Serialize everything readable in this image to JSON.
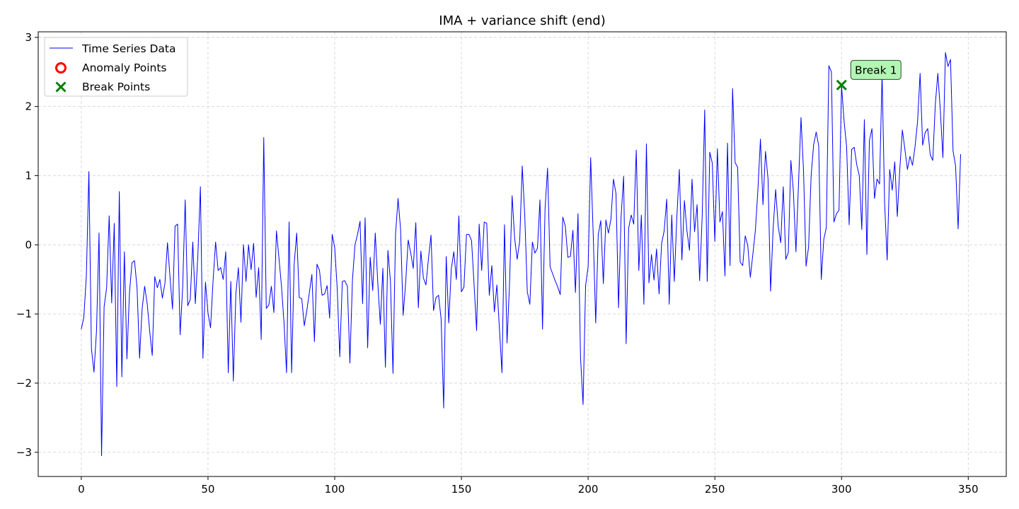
{
  "chart_data": {
    "type": "line",
    "title": "IMA + variance shift (end)",
    "xlabel": "",
    "ylabel": "",
    "xlim": [
      -17,
      365
    ],
    "ylim": [
      -3.35,
      3.08
    ],
    "xticks": [
      0,
      50,
      100,
      150,
      200,
      250,
      300,
      350
    ],
    "yticks": [
      -3,
      -2,
      -1,
      0,
      1,
      2,
      3
    ],
    "grid": true,
    "legend_position": "top-left",
    "series": [
      {
        "name": "Time Series Data",
        "color": "#0000ff",
        "x_start": 0,
        "x_step": 1,
        "y": [
          -1.22,
          -1.05,
          -0.45,
          1.06,
          -1.5,
          -1.84,
          -1.25,
          0.17,
          -3.05,
          -0.9,
          -0.62,
          0.42,
          -0.84,
          0.31,
          -2.05,
          0.77,
          -1.91,
          -0.1,
          -1.65,
          -0.7,
          -0.26,
          -0.23,
          -0.62,
          -1.64,
          -0.93,
          -0.6,
          -0.85,
          -1.25,
          -1.6,
          -0.46,
          -0.62,
          -0.5,
          -0.77,
          -0.56,
          0.03,
          -0.46,
          -0.93,
          0.27,
          0.3,
          -1.3,
          -0.62,
          0.65,
          -0.88,
          -0.79,
          0.04,
          -0.85,
          -0.15,
          0.84,
          -1.64,
          -0.54,
          -0.99,
          -1.2,
          -0.52,
          0.04,
          -0.37,
          -0.33,
          -0.5,
          -0.1,
          -1.85,
          -0.53,
          -1.97,
          -0.7,
          -0.33,
          -1.12,
          0.0,
          -0.53,
          0.0,
          -0.36,
          0.02,
          -0.76,
          -0.33,
          -1.37,
          1.55,
          -0.92,
          -0.87,
          -0.6,
          -0.98,
          0.2,
          -0.19,
          -0.6,
          -1.13,
          -1.85,
          0.33,
          -1.85,
          -0.28,
          0.17,
          -0.76,
          -0.78,
          -1.17,
          -0.95,
          -0.69,
          -0.43,
          -1.4,
          -0.28,
          -0.37,
          -0.73,
          -0.71,
          -0.59,
          -1.06,
          0.15,
          -0.04,
          -0.64,
          -1.62,
          -0.53,
          -0.52,
          -0.6,
          -1.71,
          -0.51,
          0.0,
          0.15,
          0.34,
          -0.85,
          0.39,
          -1.49,
          -0.18,
          -0.66,
          0.17,
          -0.55,
          -1.15,
          -0.34,
          -1.77,
          -0.08,
          -0.53,
          -1.86,
          0.15,
          0.67,
          0.22,
          -1.02,
          -0.55,
          0.07,
          -0.12,
          -0.34,
          0.32,
          -0.91,
          -0.09,
          -0.48,
          -0.58,
          -0.2,
          0.14,
          -0.95,
          -0.76,
          -0.73,
          -1.08,
          -2.36,
          -0.17,
          -1.13,
          -0.35,
          -0.1,
          -0.5,
          0.42,
          -0.68,
          -0.61,
          0.15,
          0.15,
          0.06,
          -0.58,
          -1.24,
          0.3,
          -0.37,
          0.33,
          0.31,
          -0.73,
          -0.3,
          -0.97,
          -0.58,
          -1.21,
          -1.85,
          0.29,
          -1.42,
          -0.55,
          0.71,
          0.1,
          -0.21,
          0.06,
          1.14,
          0.42,
          -0.68,
          -0.86,
          0.04,
          -0.12,
          -0.05,
          0.65,
          -1.22,
          0.52,
          1.11,
          -0.32,
          -0.42,
          -0.52,
          -0.61,
          -0.72,
          0.4,
          0.27,
          -0.18,
          -0.17,
          0.21,
          -0.69,
          0.45,
          -1.63,
          -2.31,
          -0.59,
          -0.32,
          1.26,
          0.16,
          -1.13,
          0.15,
          0.35,
          -0.56,
          0.36,
          0.17,
          0.37,
          0.95,
          0.74,
          -0.91,
          0.4,
          0.99,
          -1.43,
          0.24,
          0.43,
          0.3,
          1.37,
          -0.37,
          0.43,
          -0.86,
          1.46,
          -0.55,
          -0.14,
          -0.51,
          -0.06,
          -0.71,
          0.02,
          0.2,
          0.66,
          -0.86,
          0.43,
          -0.53,
          0.4,
          1.09,
          -0.22,
          0.64,
          0.2,
          -0.08,
          0.95,
          0.19,
          0.58,
          -0.52,
          0.4,
          1.95,
          -0.53,
          1.34,
          1.18,
          0.05,
          1.39,
          0.33,
          0.48,
          -0.45,
          1.47,
          -0.3,
          2.26,
          1.19,
          1.12,
          -0.25,
          -0.3,
          0.13,
          -0.01,
          -0.47,
          -0.14,
          0.21,
          0.8,
          1.53,
          0.58,
          1.35,
          0.95,
          -0.67,
          0.23,
          0.8,
          0.27,
          0.03,
          0.84,
          -0.21,
          -0.11,
          1.22,
          0.77,
          -0.1,
          0.86,
          1.84,
          1.07,
          -0.31,
          -0.03,
          1.0,
          1.45,
          1.63,
          1.43,
          -0.5,
          0.08,
          0.25,
          2.59,
          2.5,
          0.33,
          0.45,
          0.5,
          2.3,
          1.79,
          1.42,
          0.29,
          1.38,
          1.41,
          1.16,
          1.0,
          0.22,
          1.81,
          -0.14,
          1.51,
          1.68,
          0.67,
          0.95,
          0.88,
          2.47,
          0.6,
          -0.22,
          1.09,
          0.79,
          1.2,
          0.41,
          1.1,
          1.66,
          1.38,
          1.09,
          1.28,
          1.15,
          1.42,
          1.78,
          2.48,
          1.44,
          1.62,
          1.68,
          1.3,
          1.22,
          2.03,
          2.48,
          1.93,
          1.26,
          2.78,
          2.58,
          2.68,
          1.36,
          1.14,
          0.23,
          1.31
        ]
      }
    ],
    "legend": [
      {
        "label": "Time Series Data",
        "marker": "line",
        "color": "#0000ff"
      },
      {
        "label": "Anomaly Points",
        "marker": "open-circle",
        "color": "#ff0000"
      },
      {
        "label": "Break Points",
        "marker": "x",
        "color": "#008000"
      }
    ],
    "anomaly_points": [],
    "break_points": [
      {
        "x": 300,
        "y": 2.31,
        "label": "Break 1",
        "color": "#008000",
        "label_bg": "#b3f5b3"
      }
    ]
  }
}
